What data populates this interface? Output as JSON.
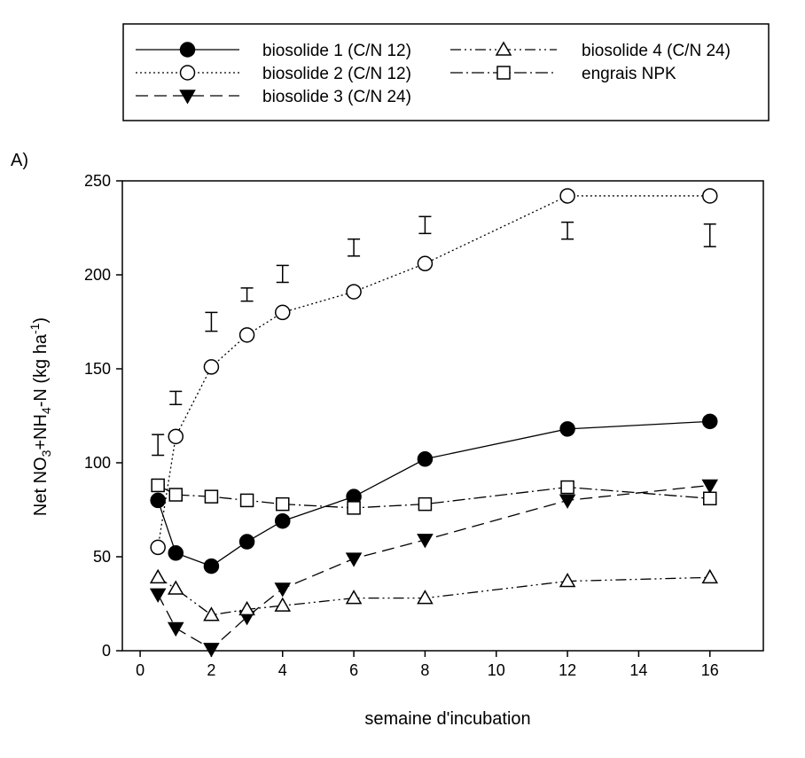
{
  "chart_data": {
    "type": "line",
    "panel_label": "A)",
    "xlabel": "semaine d'incubation",
    "ylabel": {
      "parts": [
        "Net NO",
        "3",
        "+NH",
        "4",
        "-N (kg ha",
        "-1",
        ")"
      ]
    },
    "xlim": [
      -0.5,
      17.5
    ],
    "ylim": [
      0,
      250
    ],
    "xticks": [
      0,
      2,
      4,
      6,
      8,
      10,
      12,
      14,
      16
    ],
    "yticks": [
      0,
      50,
      100,
      150,
      200,
      250
    ],
    "legend_position": "top",
    "series": [
      {
        "name": "biosolide 1 (C/N 12)",
        "marker": "circle-filled",
        "line": "solid",
        "x": [
          0.5,
          1,
          2,
          3,
          4,
          6,
          8,
          12,
          16
        ],
        "values": [
          80,
          52,
          45,
          58,
          69,
          82,
          102,
          118,
          122
        ]
      },
      {
        "name": "biosolide 2 (C/N 12)",
        "marker": "circle-open",
        "line": "dotted",
        "x": [
          0.5,
          1,
          2,
          3,
          4,
          6,
          8,
          12,
          16
        ],
        "values": [
          55,
          114,
          151,
          168,
          180,
          191,
          206,
          242,
          242
        ]
      },
      {
        "name": "biosolide 3 (C/N 24)",
        "marker": "triangle-down-filled",
        "line": "dashed",
        "x": [
          0.5,
          1,
          2,
          3,
          4,
          6,
          8,
          12,
          16
        ],
        "values": [
          30,
          12,
          1,
          18,
          33,
          49,
          59,
          80,
          88
        ]
      },
      {
        "name": "biosolide 4 (C/N 24)",
        "marker": "triangle-up-open",
        "line": "dash-dot-dot",
        "x": [
          0.5,
          1,
          2,
          3,
          4,
          6,
          8,
          12,
          16
        ],
        "values": [
          39,
          33,
          19,
          22,
          24,
          28,
          28,
          37,
          39
        ]
      },
      {
        "name": "engrais NPK",
        "marker": "square-open",
        "line": "dash-dot",
        "x": [
          0.5,
          1,
          2,
          3,
          4,
          6,
          8,
          12,
          16
        ],
        "values": [
          88,
          83,
          82,
          80,
          78,
          76,
          78,
          87,
          81
        ]
      }
    ],
    "error_bars": {
      "description": "LSD bars",
      "x": [
        0.5,
        1,
        2,
        3,
        4,
        6,
        8,
        12,
        16
      ],
      "low": [
        104,
        131,
        170,
        186,
        196,
        210,
        222,
        219,
        215
      ],
      "high": [
        115,
        138,
        180,
        193,
        205,
        219,
        231,
        228,
        227
      ]
    }
  }
}
